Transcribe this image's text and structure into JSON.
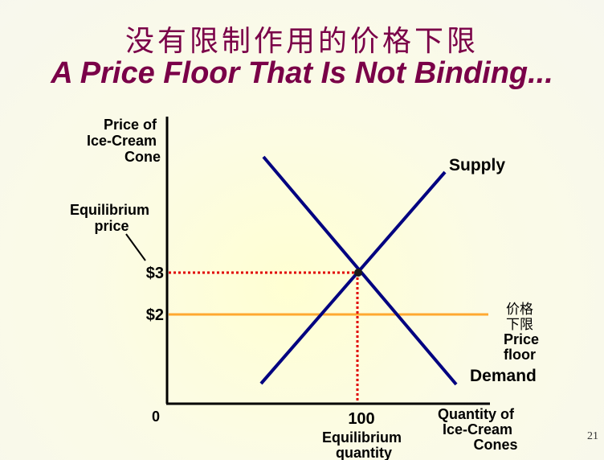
{
  "title": {
    "zh": "没有限制作用的价格下限",
    "en": "A Price Floor That Is Not Binding..."
  },
  "axes": {
    "y_label_lines": [
      "Price of",
      "Ice-Cream",
      "Cone"
    ],
    "x_label_lines": [
      "Quantity of",
      "Ice-Cream",
      "Cones"
    ],
    "origin": "0"
  },
  "annotations": {
    "equilibrium_price_lines": [
      "Equilibrium",
      "price"
    ],
    "equilibrium_quantity_value": "100",
    "equilibrium_quantity_lines": [
      "Equilibrium",
      "quantity"
    ],
    "price_3": "$3",
    "price_2": "$2",
    "supply": "Supply",
    "demand": "Demand",
    "floor_zh_lines": [
      "价格",
      "下限"
    ],
    "floor_en_lines": [
      "Price",
      "floor"
    ]
  },
  "colors": {
    "title": "#7a0048",
    "curves": "#000080",
    "price_floor": "#ffa830",
    "equilibrium_guides": "#e00000"
  },
  "chart_data": {
    "type": "line",
    "equilibrium": {
      "price": 3,
      "quantity": 100
    },
    "price_floor": 2,
    "series": [
      {
        "name": "Supply"
      },
      {
        "name": "Demand"
      }
    ]
  },
  "slide_number": "21"
}
